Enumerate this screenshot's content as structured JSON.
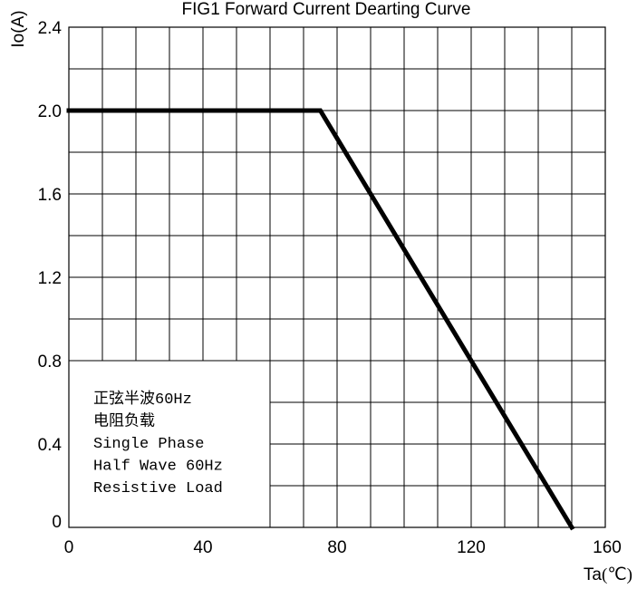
{
  "chart_data": {
    "type": "line",
    "title": "FIG1 Forward Current Dearting Curve",
    "ylabel": "Io(A)",
    "xlabel": "Ta",
    "xunit": "(℃)",
    "xlim": [
      0,
      160
    ],
    "ylim": [
      0,
      2.4
    ],
    "x_ticks": [
      0,
      40,
      80,
      120,
      160
    ],
    "y_ticks": [
      0,
      0.4,
      0.8,
      1.2,
      1.6,
      2.0,
      2.4
    ],
    "x_tick_labels": [
      "0",
      "40",
      "80",
      "120",
      "160"
    ],
    "y_tick_labels": [
      "0",
      "0.4",
      "0.8",
      "1.2",
      "1.6",
      "2.0",
      "2.4"
    ],
    "x_grid_step": 10,
    "y_grid_step": 0.2,
    "grid": true,
    "series": [
      {
        "x": [
          0,
          75,
          150
        ],
        "y": [
          2.0,
          2.0,
          0
        ],
        "color": "#000000"
      }
    ],
    "legend_box": {
      "placement": "bottom-left",
      "lines": [
        "正弦半波60Hz",
        "电阻负载",
        "Single Phase",
        "Half Wave 60Hz",
        "Resistive Load"
      ],
      "x_range": [
        0,
        60
      ],
      "y_range": [
        0,
        0.8
      ]
    }
  }
}
